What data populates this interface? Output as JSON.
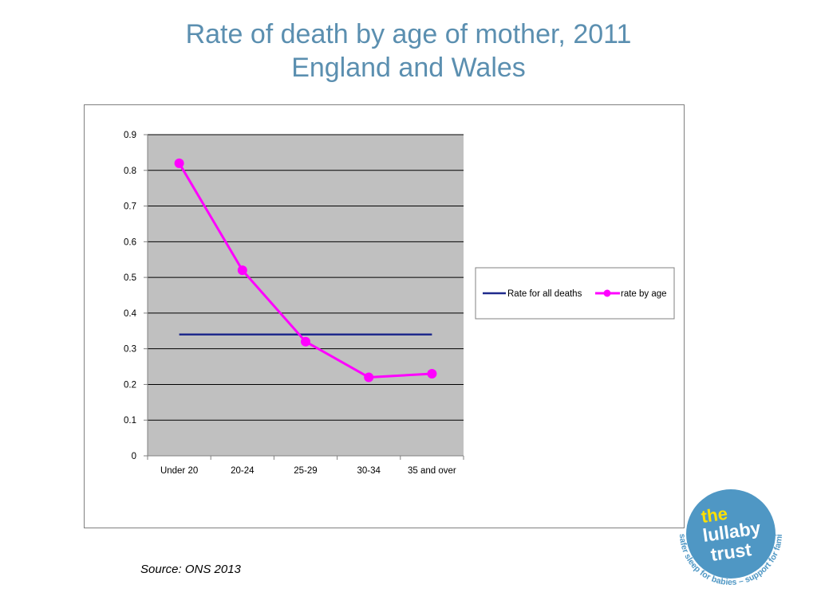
{
  "page": {
    "title_line1": "Rate of death by age of mother, 2011",
    "title_line2": "England and Wales",
    "source": "Source: ONS 2013"
  },
  "logo": {
    "word1": "the",
    "word2": "lullaby",
    "word3": "trust",
    "tagline": "safer sleep for babies – support for families",
    "color": "#4f97c4"
  },
  "chart_data": {
    "type": "line",
    "categories": [
      "Under 20",
      "20-24",
      "25-29",
      "30-34",
      "35 and over"
    ],
    "series": [
      {
        "name": "Rate for all deaths",
        "values": [
          0.34,
          0.34,
          0.34,
          0.34,
          0.34
        ],
        "color": "#1f2a8c",
        "markers": false
      },
      {
        "name": "rate by age",
        "values": [
          0.82,
          0.52,
          0.32,
          0.22,
          0.23
        ],
        "color": "#ff00ff",
        "markers": true
      }
    ],
    "ylim": [
      0,
      0.9
    ],
    "yticks": [
      "0",
      "0.1",
      "0.2",
      "0.3",
      "0.4",
      "0.5",
      "0.6",
      "0.7",
      "0.8",
      "0.9"
    ],
    "grid": true,
    "plot_background": "#c0c0c0",
    "legend_position": "right"
  }
}
